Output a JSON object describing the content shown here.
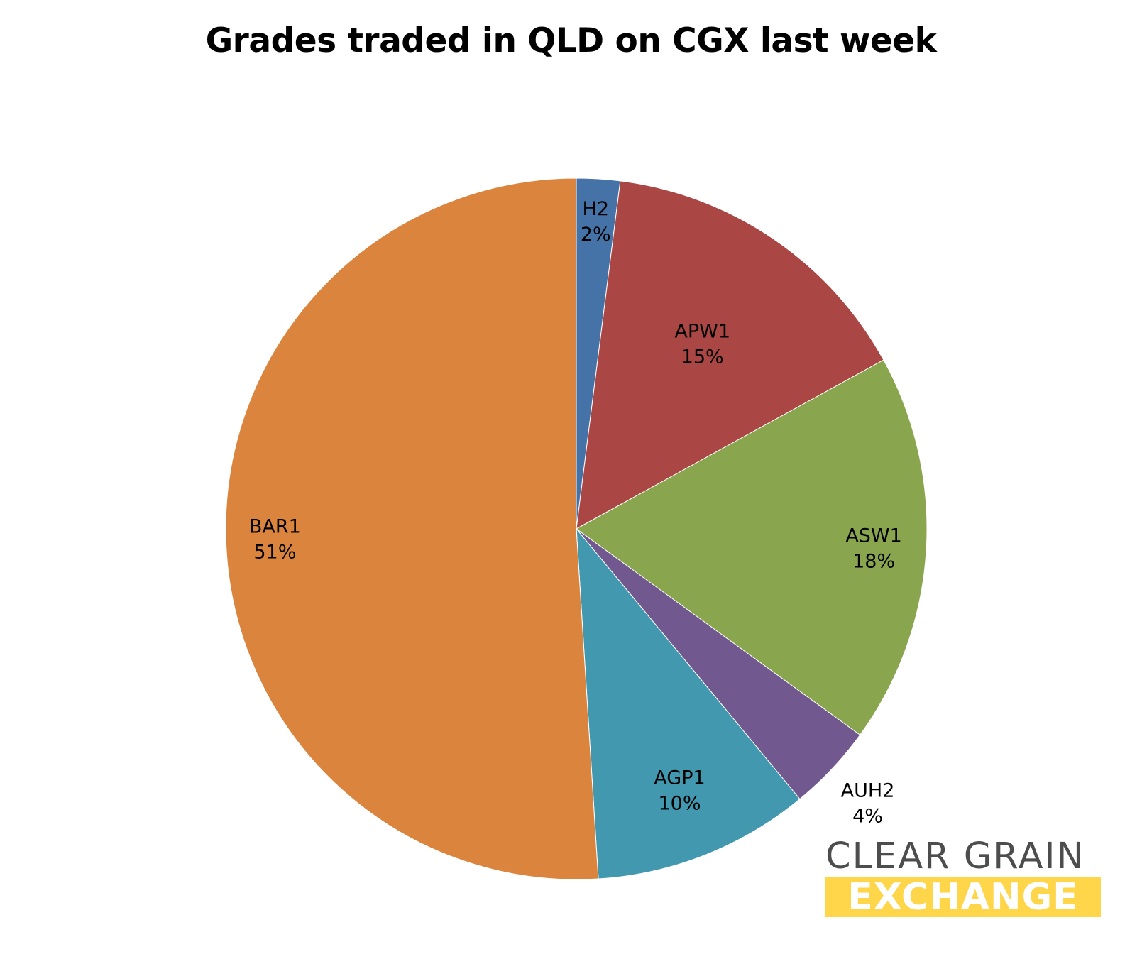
{
  "chart_data": {
    "type": "pie",
    "title": "Grades traded in QLD on CGX last week",
    "slices": [
      {
        "label": "H2",
        "value": 2,
        "value_label": "2%",
        "color": "#4572a7"
      },
      {
        "label": "APW1",
        "value": 15,
        "value_label": "15%",
        "color": "#aa4643"
      },
      {
        "label": "ASW1",
        "value": 18,
        "value_label": "18%",
        "color": "#89a54e"
      },
      {
        "label": "AUH2",
        "value": 4,
        "value_label": "4%",
        "color": "#71588f"
      },
      {
        "label": "AGP1",
        "value": 10,
        "value_label": "10%",
        "color": "#4198af"
      },
      {
        "label": "BAR1",
        "value": 51,
        "value_label": "51%",
        "color": "#db843d"
      }
    ],
    "legend": "none",
    "data_labels": "category and percent"
  },
  "logo": {
    "line1": "CLEAR GRAIN",
    "line2": "EXCHANGE"
  }
}
